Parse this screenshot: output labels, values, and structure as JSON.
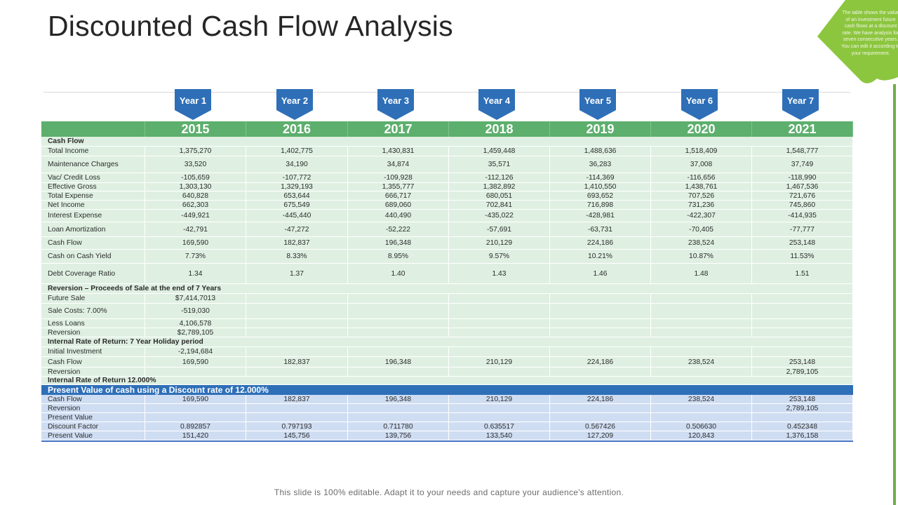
{
  "title": "Discounted Cash Flow Analysis",
  "corner_note": "The table shows the value of an investment future cash flows at a discount rate. We have analysis for seven consecutive years. You can edit it according to your requirement.",
  "year_tags": [
    "Year 1",
    "Year 2",
    "Year 3",
    "Year 4",
    "Year 5",
    "Year 6",
    "Year 7"
  ],
  "years": [
    "2015",
    "2016",
    "2017",
    "2018",
    "2019",
    "2020",
    "2021"
  ],
  "sections": {
    "cash_flow": {
      "header": "Cash Flow",
      "rows": [
        {
          "label": "Total Income",
          "values": [
            "1,375,270",
            "1,402,775",
            "1,430,831",
            "1,459,448",
            "1,488,636",
            "1,518,409",
            "1,548,777"
          ]
        },
        {
          "label": "Maintenance Charges",
          "values": [
            "33,520",
            "34,190",
            "34,874",
            "35,571",
            "36,283",
            "37,008",
            "37,749"
          ]
        },
        {
          "label": "Vac/ Credit Loss",
          "values": [
            "-105,659",
            "-107,772",
            "-109,928",
            "-112,126",
            "-114,369",
            "-116,656",
            "-118,990"
          ]
        },
        {
          "label": "Effective Gross",
          "values": [
            "1,303,130",
            "1,329,193",
            "1,355,777",
            "1,382,892",
            "1,410,550",
            "1,438,761",
            "1,467,536"
          ]
        },
        {
          "label": "Total Expense",
          "values": [
            "640,828",
            "653,644",
            "666,717",
            "680,051",
            "693,652",
            "707,526",
            "721,676"
          ]
        },
        {
          "label": "Net Income",
          "values": [
            "662,303",
            "675,549",
            "689,060",
            "702,841",
            "716,898",
            "731,236",
            "745,860"
          ]
        },
        {
          "label": "Interest Expense",
          "values": [
            "-449,921",
            "-445,440",
            "440,490",
            "-435,022",
            "-428,981",
            "-422,307",
            "-414,935"
          ]
        },
        {
          "label": "Loan Amortization",
          "values": [
            "-42,791",
            "-47,272",
            "-52,222",
            "-57,691",
            "-63,731",
            "-70,405",
            "-77,777"
          ]
        },
        {
          "label": "Cash Flow",
          "values": [
            "169,590",
            "182,837",
            "196,348",
            "210,129",
            "224,186",
            "238,524",
            "253,148"
          ]
        },
        {
          "label": "Cash on Cash Yield",
          "values": [
            "7.73%",
            "8.33%",
            "8.95%",
            "9.57%",
            "10.21%",
            "10.87%",
            "11.53%"
          ]
        },
        {
          "label": "Debt Coverage Ratio",
          "values": [
            "1.34",
            "1.37",
            "1.40",
            "1.43",
            "1.46",
            "1.48",
            "1.51"
          ]
        }
      ]
    },
    "reversion": {
      "header": "Reversion – Proceeds of Sale at the end of 7 Years",
      "rows": [
        {
          "label": "Future Sale",
          "values": [
            "$7,414,7013",
            "",
            "",
            "",
            "",
            "",
            ""
          ]
        },
        {
          "label": "Sale Costs: 7.00%",
          "values": [
            "-519,030",
            "",
            "",
            "",
            "",
            "",
            ""
          ]
        },
        {
          "label": "Less Loans",
          "values": [
            "4,106,578",
            "",
            "",
            "",
            "",
            "",
            ""
          ]
        },
        {
          "label": "Reversion",
          "values": [
            "$2,789,105",
            "",
            "",
            "",
            "",
            "",
            ""
          ]
        }
      ]
    },
    "irr": {
      "header": "Internal Rate of Return: 7 Year Holiday period",
      "rows": [
        {
          "label": "Initial Investment",
          "values": [
            "-2,194,684",
            "",
            "",
            "",
            "",
            "",
            ""
          ]
        },
        {
          "label": "Cash Flow",
          "values": [
            "169,590",
            "182,837",
            "196,348",
            "210,129",
            "224,186",
            "238,524",
            "253,148"
          ]
        },
        {
          "label": "Reversion",
          "values": [
            "",
            "",
            "",
            "",
            "",
            "",
            "2,789,105"
          ]
        }
      ],
      "footer": "Internal Rate of Return 12.000%"
    },
    "present_value": {
      "header": "Present Value of cash using  a Discount  rate of 12.000%",
      "rows": [
        {
          "label": "Cash Flow",
          "values": [
            "169,590",
            "182,837",
            "196,348",
            "210,129",
            "224,186",
            "238,524",
            "253,148"
          ]
        },
        {
          "label": "Reversion",
          "values": [
            "",
            "",
            "",
            "",
            "",
            "",
            "2,789,105"
          ]
        },
        {
          "label": "Present Value",
          "values": [
            "",
            "",
            "",
            "",
            "",
            "",
            ""
          ]
        },
        {
          "label": "Discount Factor",
          "values": [
            "0.892857",
            "0.797193",
            "0.711780",
            "0.635517",
            "0.567426",
            "0.506630",
            "0.452348"
          ]
        },
        {
          "label": "Present Value",
          "values": [
            "151,420",
            "145,756",
            "139,756",
            "133,540",
            "127,209",
            "120,843",
            "1,376,158"
          ]
        }
      ]
    }
  },
  "footer": "This slide is 100% editable. Adapt it to your needs and capture your audience's attention.",
  "colors": {
    "green": "#5daf6d",
    "light_green": "#dff0e2",
    "blue": "#2e6fb8",
    "light_blue": "#cfddf2",
    "tag_blue": "#2e6fb8",
    "corner_green": "#8cc63f"
  }
}
